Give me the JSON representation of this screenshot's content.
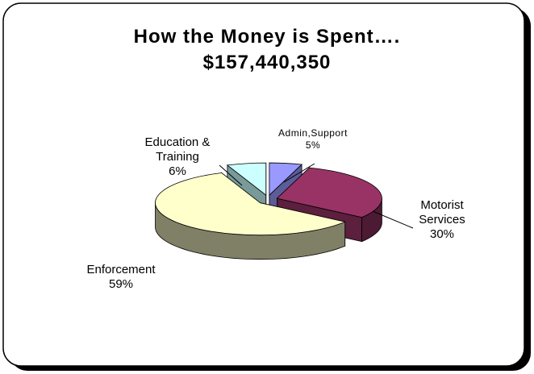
{
  "chart_data": {
    "type": "pie3d",
    "title": "How the Money is Spent….",
    "subtitle": "$157,440,350",
    "categories": [
      "Admin,Support",
      "Motorist Services",
      "Enforcement",
      "Education & Training"
    ],
    "values": [
      5,
      30,
      59,
      6
    ],
    "value_labels": [
      "5%",
      "30%",
      "59%",
      "6%"
    ],
    "colors": [
      "#9999ff",
      "#993366",
      "#ffffcc",
      "#ccffff"
    ]
  }
}
